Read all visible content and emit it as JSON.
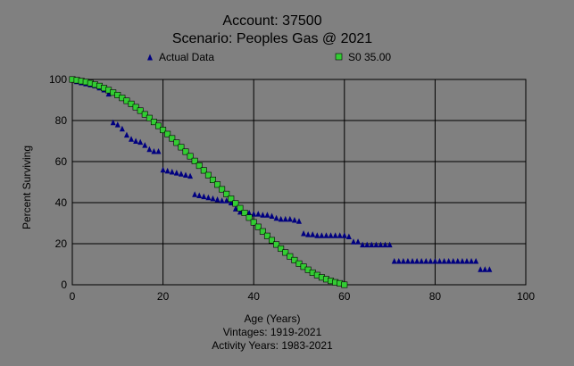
{
  "chart_data": {
    "type": "scatter",
    "title": "Account: 37500",
    "subtitle": "Scenario: Peoples Gas @ 2021",
    "xlabel": "Age (Years)",
    "ylabel": "Percent Surviving",
    "notes": [
      "Vintages: 1919-2021",
      "Activity Years: 1983-2021"
    ],
    "xlim": [
      0,
      100
    ],
    "ylim": [
      0,
      100
    ],
    "xticks": [
      0,
      20,
      40,
      60,
      80,
      100
    ],
    "yticks": [
      0,
      20,
      40,
      60,
      80,
      100
    ],
    "grid": true,
    "legend": "top",
    "series": [
      {
        "name": "Actual Data",
        "marker": "triangle",
        "color": "#000080",
        "points": [
          [
            0,
            100
          ],
          [
            1,
            99
          ],
          [
            2,
            98.5
          ],
          [
            3,
            98
          ],
          [
            4,
            97.5
          ],
          [
            5,
            97
          ],
          [
            6,
            96
          ],
          [
            7,
            95
          ],
          [
            8,
            93
          ],
          [
            9,
            79
          ],
          [
            10,
            78
          ],
          [
            11,
            76
          ],
          [
            12,
            73
          ],
          [
            13,
            71
          ],
          [
            14,
            70
          ],
          [
            15,
            69.5
          ],
          [
            16,
            68
          ],
          [
            17,
            66
          ],
          [
            18,
            65
          ],
          [
            19,
            65
          ],
          [
            20,
            56
          ],
          [
            21,
            55.5
          ],
          [
            22,
            55
          ],
          [
            23,
            54.5
          ],
          [
            24,
            54
          ],
          [
            25,
            53.5
          ],
          [
            26,
            53
          ],
          [
            27,
            44
          ],
          [
            28,
            43.5
          ],
          [
            29,
            43
          ],
          [
            30,
            42.5
          ],
          [
            31,
            42
          ],
          [
            32,
            41.5
          ],
          [
            33,
            41
          ],
          [
            34,
            41
          ],
          [
            35,
            40
          ],
          [
            36,
            37
          ],
          [
            37,
            35.5
          ],
          [
            38,
            35
          ],
          [
            39,
            35
          ],
          [
            40,
            34.5
          ],
          [
            41,
            34.5
          ],
          [
            42,
            34
          ],
          [
            43,
            34
          ],
          [
            44,
            33.5
          ],
          [
            45,
            32.5
          ],
          [
            46,
            32
          ],
          [
            47,
            32
          ],
          [
            48,
            32
          ],
          [
            49,
            31.5
          ],
          [
            50,
            31
          ],
          [
            51,
            25
          ],
          [
            52,
            24.5
          ],
          [
            53,
            24.5
          ],
          [
            54,
            24
          ],
          [
            55,
            24
          ],
          [
            56,
            24
          ],
          [
            57,
            24
          ],
          [
            58,
            24
          ],
          [
            59,
            24
          ],
          [
            60,
            24
          ],
          [
            61,
            23.5
          ],
          [
            62,
            21
          ],
          [
            63,
            21
          ],
          [
            64,
            19.5
          ],
          [
            65,
            19.5
          ],
          [
            66,
            19.5
          ],
          [
            67,
            19.5
          ],
          [
            68,
            19.5
          ],
          [
            69,
            19.5
          ],
          [
            70,
            19.5
          ],
          [
            71,
            11.5
          ],
          [
            72,
            11.5
          ],
          [
            73,
            11.5
          ],
          [
            74,
            11.5
          ],
          [
            75,
            11.5
          ],
          [
            76,
            11.5
          ],
          [
            77,
            11.5
          ],
          [
            78,
            11.5
          ],
          [
            79,
            11.5
          ],
          [
            80,
            11.5
          ],
          [
            81,
            11.5
          ],
          [
            82,
            11.5
          ],
          [
            83,
            11.5
          ],
          [
            84,
            11.5
          ],
          [
            85,
            11.5
          ],
          [
            86,
            11.5
          ],
          [
            87,
            11.5
          ],
          [
            88,
            11.5
          ],
          [
            89,
            11.5
          ],
          [
            90,
            7.5
          ],
          [
            91,
            7.5
          ],
          [
            92,
            7.5
          ]
        ]
      },
      {
        "name": "S0 35.00",
        "marker": "square",
        "color": "#33cc33",
        "points": [
          [
            0,
            100
          ],
          [
            1,
            99.6
          ],
          [
            2,
            99.2
          ],
          [
            3,
            98.8
          ],
          [
            4,
            98.2
          ],
          [
            5,
            97.5
          ],
          [
            6,
            96.8
          ],
          [
            7,
            95.8
          ],
          [
            8,
            94.8
          ],
          [
            9,
            93.6
          ],
          [
            10,
            92.4
          ],
          [
            11,
            91
          ],
          [
            12,
            89.6
          ],
          [
            13,
            88.1
          ],
          [
            14,
            86.5
          ],
          [
            15,
            84.8
          ],
          [
            16,
            83
          ],
          [
            17,
            81.2
          ],
          [
            18,
            79.3
          ],
          [
            19,
            77.4
          ],
          [
            20,
            75.4
          ],
          [
            21,
            73.4
          ],
          [
            22,
            71.3
          ],
          [
            23,
            69.2
          ],
          [
            24,
            67
          ],
          [
            25,
            64.8
          ],
          [
            26,
            62.6
          ],
          [
            27,
            60.3
          ],
          [
            28,
            58
          ],
          [
            29,
            55.7
          ],
          [
            30,
            53.4
          ],
          [
            31,
            51.1
          ],
          [
            32,
            48.8
          ],
          [
            33,
            46.5
          ],
          [
            34,
            44.2
          ],
          [
            35,
            41.9
          ],
          [
            36,
            39.6
          ],
          [
            37,
            37.3
          ],
          [
            38,
            35
          ],
          [
            39,
            32.7
          ],
          [
            40,
            30.4
          ],
          [
            41,
            28.2
          ],
          [
            42,
            26
          ],
          [
            43,
            23.8
          ],
          [
            44,
            21.7
          ],
          [
            45,
            19.6
          ],
          [
            46,
            17.6
          ],
          [
            47,
            15.7
          ],
          [
            48,
            13.8
          ],
          [
            49,
            12
          ],
          [
            50,
            10.3
          ],
          [
            51,
            8.8
          ],
          [
            52,
            7.3
          ],
          [
            53,
            5.9
          ],
          [
            54,
            4.7
          ],
          [
            55,
            3.6
          ],
          [
            56,
            2.7
          ],
          [
            57,
            1.9
          ],
          [
            58,
            1.2
          ],
          [
            59,
            0.7
          ],
          [
            60,
            0
          ]
        ]
      }
    ]
  }
}
